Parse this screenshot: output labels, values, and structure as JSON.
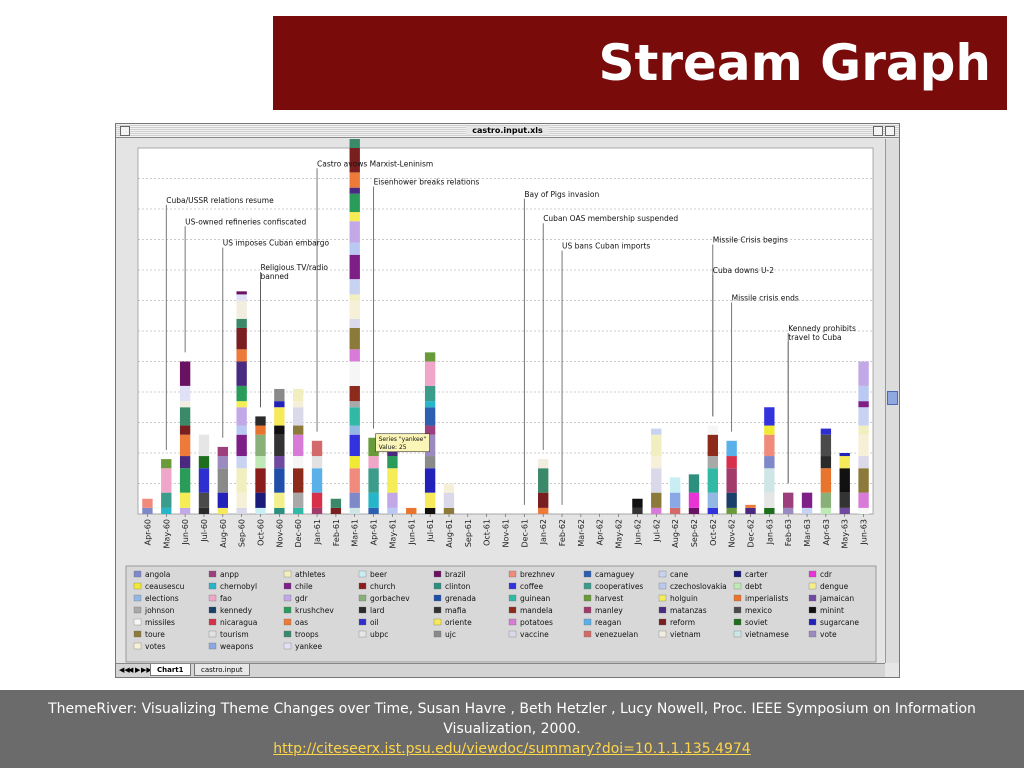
{
  "slide": {
    "title": "Stream Graph",
    "caption": "ThemeRiver: Visualizing Theme Changes over Time, Susan Havre , Beth Hetzler , Lucy Nowell, Proc. IEEE Symposium on Information Visualization, 2000.",
    "link": "http://citeseerx.ist.psu.edu/viewdoc/summary?doi=10.1.1.135.4974"
  },
  "window": {
    "title": "castro.input.xls",
    "tabs": [
      "Chart1",
      "castro.input"
    ],
    "nav_arrows": [
      "◀◀",
      "◀",
      "▶",
      "▶▶"
    ]
  },
  "chart_data": {
    "type": "bar",
    "stacked": true,
    "grid": true,
    "legend_position": "bottom",
    "ylim": [
      0,
      120
    ],
    "categories": [
      "Apr-60",
      "May-60",
      "Jun-60",
      "Jul-60",
      "Aug-60",
      "Sep-60",
      "Oct-60",
      "Nov-60",
      "Dec-60",
      "Jan-61",
      "Feb-61",
      "Mar-61",
      "Apr-61",
      "May-61",
      "Jun-61",
      "Jul-61",
      "Aug-61",
      "Sep-61",
      "Oct-61",
      "Nov-61",
      "Dec-61",
      "Jan-62",
      "Feb-62",
      "Mar-62",
      "Apr-62",
      "May-62",
      "Jun-62",
      "Jul-62",
      "Aug-62",
      "Sep-62",
      "Oct-62",
      "Nov-62",
      "Dec-62",
      "Jan-63",
      "Feb-63",
      "Mar-63",
      "Apr-63",
      "May-63",
      "Jun-63"
    ],
    "tick_label_map": {
      "Oct-60": "Oct-60",
      "Nov-60": "Nov-60"
    },
    "total_values": [
      5,
      18,
      50,
      26,
      22,
      73,
      32,
      41,
      41,
      24,
      5,
      123,
      25,
      26,
      2,
      53,
      10,
      0,
      0,
      0,
      0,
      18,
      0,
      0,
      0,
      0,
      5,
      28,
      12,
      13,
      29,
      24,
      3,
      35,
      7,
      7,
      28,
      20,
      50
    ],
    "series": [
      {
        "name": "angola",
        "color": "#7f89c9"
      },
      {
        "name": "anpp",
        "color": "#9c3f7c"
      },
      {
        "name": "athletes",
        "color": "#f1efc0"
      },
      {
        "name": "beer",
        "color": "#c8eef4"
      },
      {
        "name": "brazil",
        "color": "#6a1262"
      },
      {
        "name": "brezhnev",
        "color": "#f08a7a"
      },
      {
        "name": "camaguey",
        "color": "#2c5fb0"
      },
      {
        "name": "cane",
        "color": "#c8d3f2"
      },
      {
        "name": "carter",
        "color": "#1a1a7a"
      },
      {
        "name": "cdr",
        "color": "#e834d4"
      },
      {
        "name": "ceausescu",
        "color": "#f1ea35"
      },
      {
        "name": "chernobyl",
        "color": "#27b5c9"
      },
      {
        "name": "chile",
        "color": "#7d1f86"
      },
      {
        "name": "church",
        "color": "#8c1b1b"
      },
      {
        "name": "clinton",
        "color": "#2d8f7e"
      },
      {
        "name": "coffee",
        "color": "#3333dd"
      },
      {
        "name": "cooperatives",
        "color": "#3c9c8c"
      },
      {
        "name": "czechoslovakia",
        "color": "#b9c9f2"
      },
      {
        "name": "debt",
        "color": "#bfe9b6"
      },
      {
        "name": "dengue",
        "color": "#f3ef8c"
      },
      {
        "name": "elections",
        "color": "#92b8e3"
      },
      {
        "name": "fao",
        "color": "#f0a6c8"
      },
      {
        "name": "gdr",
        "color": "#c2a8e6"
      },
      {
        "name": "gorbachev",
        "color": "#8ab07a"
      },
      {
        "name": "grenada",
        "color": "#1f4fa8"
      },
      {
        "name": "guinean",
        "color": "#30b9a5"
      },
      {
        "name": "harvest",
        "color": "#6a9b3a"
      },
      {
        "name": "holguin",
        "color": "#f6ec55"
      },
      {
        "name": "imperialists",
        "color": "#e8742e"
      },
      {
        "name": "jamaican",
        "color": "#6f4aa0"
      },
      {
        "name": "johnson",
        "color": "#a9a9a9"
      },
      {
        "name": "kennedy",
        "color": "#1a3f6a"
      },
      {
        "name": "krushchev",
        "color": "#2a9c5a"
      },
      {
        "name": "lard",
        "color": "#2a2a2a"
      },
      {
        "name": "mafia",
        "color": "#333333"
      },
      {
        "name": "mandela",
        "color": "#8c2a1c"
      },
      {
        "name": "manley",
        "color": "#a23a6a"
      },
      {
        "name": "matanzas",
        "color": "#4a2a80"
      },
      {
        "name": "mexico",
        "color": "#4a4a4a"
      },
      {
        "name": "minint",
        "color": "#111111"
      },
      {
        "name": "missiles",
        "color": "#f6f6f6"
      },
      {
        "name": "nicaragua",
        "color": "#d8304a"
      },
      {
        "name": "oas",
        "color": "#ee7a3a"
      },
      {
        "name": "oil",
        "color": "#2f2fd0"
      },
      {
        "name": "oriente",
        "color": "#f6e95a"
      },
      {
        "name": "potatoes",
        "color": "#d87ad8"
      },
      {
        "name": "reagan",
        "color": "#5ab0e8"
      },
      {
        "name": "reform",
        "color": "#7a1f1f"
      },
      {
        "name": "soviet",
        "color": "#1d6e1d"
      },
      {
        "name": "sugarcane",
        "color": "#2222bb"
      },
      {
        "name": "toure",
        "color": "#8c7a3a"
      },
      {
        "name": "tourism",
        "color": "#e2e2e2"
      },
      {
        "name": "troops",
        "color": "#3a8a6a"
      },
      {
        "name": "ubpc",
        "color": "#e6e6e6"
      },
      {
        "name": "ujc",
        "color": "#8a8a8a"
      },
      {
        "name": "vaccine",
        "color": "#d9d9ea"
      },
      {
        "name": "venezuelan",
        "color": "#d26a6a"
      },
      {
        "name": "vietnam",
        "color": "#f1eee0"
      },
      {
        "name": "vietnamese",
        "color": "#cfe6e6"
      },
      {
        "name": "vote",
        "color": "#9a8ac0"
      },
      {
        "name": "votes",
        "color": "#f6f0d8"
      },
      {
        "name": "weapons",
        "color": "#8aa8e6"
      },
      {
        "name": "yankee",
        "color": "#e0e0f8"
      }
    ],
    "annotations": [
      {
        "text": "Cuba/USSR relations resume",
        "category": "May-60",
        "value": 102
      },
      {
        "text": "US-owned refineries confiscated",
        "category": "Jun-60",
        "value": 95
      },
      {
        "text": "US imposes Cuban embargo",
        "category": "Aug-60",
        "value": 88
      },
      {
        "text": "Religious TV/radio",
        "category": "Oct-60",
        "value": 80
      },
      {
        "text": "banned",
        "category": "Oct-60",
        "value": 77
      },
      {
        "text": "Castro avows Marxist-Leninism",
        "category": "Jan-61",
        "value": 114
      },
      {
        "text": "Eisenhower breaks relations",
        "category": "Apr-61",
        "value": 108
      },
      {
        "text": "Bay of Pigs invasion",
        "category": "Dec-61",
        "value": 104
      },
      {
        "text": "Cuban OAS membership suspended",
        "category": "Jan-62",
        "value": 96
      },
      {
        "text": "US bans Cuban imports",
        "category": "Feb-62",
        "value": 87
      },
      {
        "text": "Missile Crisis begins",
        "category": "Oct-62",
        "value": 89
      },
      {
        "text": "Cuba downs U-2",
        "category": "Oct-62",
        "value": 79
      },
      {
        "text": "Missile crisis ends",
        "category": "Nov-62",
        "value": 70
      },
      {
        "text": "Kennedy prohibits",
        "category": "Feb-63",
        "value": 60
      },
      {
        "text": "travel to Cuba",
        "category": "Feb-63",
        "value": 57
      }
    ],
    "tooltip": {
      "series_line": "Series \"yankee\"",
      "value_line": "Value: 25",
      "category": "Apr-61"
    }
  }
}
